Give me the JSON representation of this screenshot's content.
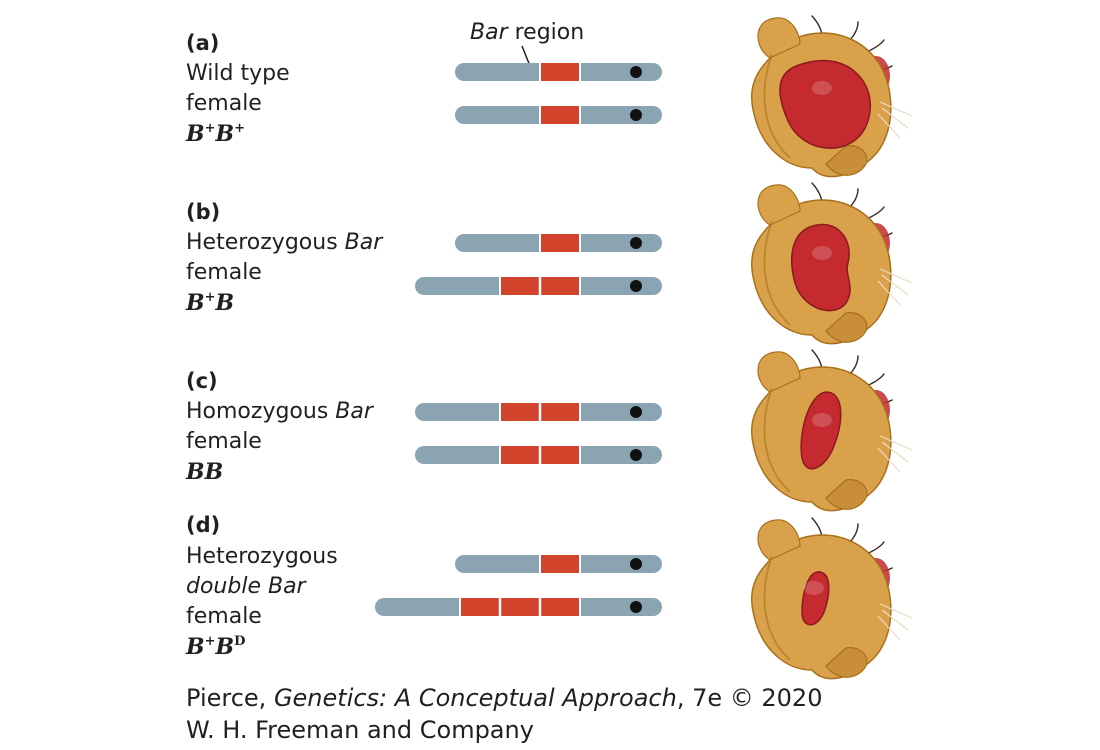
{
  "bar_region_label": {
    "italic": "Bar",
    "rest": " region"
  },
  "panels": [
    {
      "letter": "(a)",
      "lines": [
        {
          "pre": "Wild type",
          "it": ""
        },
        {
          "pre": "female",
          "it": ""
        }
      ],
      "genotype": {
        "a": "B",
        "a_sup": "+",
        "b": "B",
        "b_sup": "+"
      },
      "chromosomes": [
        1,
        1
      ],
      "eye": "full"
    },
    {
      "letter": "(b)",
      "lines": [
        {
          "pre": "Heterozygous ",
          "it": "Bar"
        },
        {
          "pre": "female",
          "it": ""
        }
      ],
      "genotype": {
        "a": "B",
        "a_sup": "+",
        "b": "B",
        "b_sup": ""
      },
      "chromosomes": [
        1,
        2
      ],
      "eye": "kidney"
    },
    {
      "letter": "(c)",
      "lines": [
        {
          "pre": "Homozygous ",
          "it": "Bar"
        },
        {
          "pre": "female",
          "it": ""
        }
      ],
      "genotype": {
        "a": "B",
        "a_sup": "",
        "b": "B",
        "b_sup": ""
      },
      "chromosomes": [
        2,
        2
      ],
      "eye": "narrow"
    },
    {
      "letter": "(d)",
      "lines": [
        {
          "pre": "Heterozygous",
          "it": ""
        },
        {
          "pre": "",
          "it": "double Bar"
        },
        {
          "pre": "female",
          "it": ""
        }
      ],
      "genotype": {
        "a": "B",
        "a_sup": "+",
        "b": "B",
        "b_sup": "D"
      },
      "chromosomes": [
        1,
        3
      ],
      "eye": "small"
    }
  ],
  "credit": {
    "line1_pre": "Pierce, ",
    "line1_it": "Genetics: A Conceptual Approach",
    "line1_post": ", 7e © 2020",
    "line2": "W. H. Freeman and Company"
  },
  "colors": {
    "chromosome": "#8aa4b2",
    "bar_region": "#d2432c",
    "centromere": "#111111",
    "fly_body": "#d9a24a",
    "fly_dark": "#a8701c",
    "eye_red": "#c42a2f"
  }
}
